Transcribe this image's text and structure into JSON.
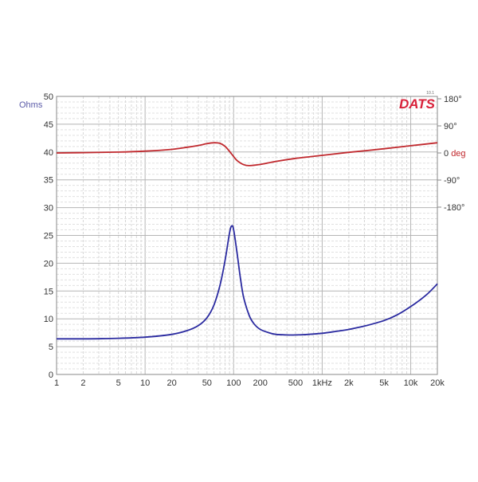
{
  "chart_data": {
    "type": "line",
    "title": "",
    "brand": "DATS",
    "brand_version": "10.1",
    "xlabel": "",
    "x_scale": "log",
    "xlim": [
      1,
      20000
    ],
    "x_ticks": [
      {
        "value": 1,
        "label": "1"
      },
      {
        "value": 2,
        "label": "2"
      },
      {
        "value": 5,
        "label": "5"
      },
      {
        "value": 10,
        "label": "10"
      },
      {
        "value": 20,
        "label": "20"
      },
      {
        "value": 50,
        "label": "50"
      },
      {
        "value": 100,
        "label": "100"
      },
      {
        "value": 200,
        "label": "200"
      },
      {
        "value": 500,
        "label": "500"
      },
      {
        "value": 1000,
        "label": "1kHz"
      },
      {
        "value": 2000,
        "label": "2k"
      },
      {
        "value": 5000,
        "label": "5k"
      },
      {
        "value": 10000,
        "label": "10k"
      },
      {
        "value": 20000,
        "label": "20k"
      }
    ],
    "ylabel_left": "Ohms",
    "ylim_left": [
      0,
      50
    ],
    "y_ticks_left": [
      "0",
      "5",
      "10",
      "15",
      "20",
      "25",
      "30",
      "35",
      "40",
      "45",
      "50"
    ],
    "ylabel_right": "deg",
    "ylim_right": [
      -180,
      180
    ],
    "y_ticks_right": [
      {
        "value": 180,
        "label": "180°"
      },
      {
        "value": 90,
        "label": "90°"
      },
      {
        "value": 0,
        "label": "0 deg"
      },
      {
        "value": -90,
        "label": "-90°"
      },
      {
        "value": -180,
        "label": "-180°"
      }
    ],
    "grid": true,
    "series": [
      {
        "name": "Impedance",
        "axis": "left",
        "color": "#2a2aa0",
        "x": [
          1,
          2,
          5,
          10,
          20,
          30,
          40,
          50,
          60,
          70,
          80,
          90,
          95,
          100,
          110,
          120,
          130,
          150,
          170,
          200,
          250,
          300,
          400,
          500,
          700,
          1000,
          1500,
          2000,
          3000,
          5000,
          7000,
          10000,
          15000,
          20000
        ],
        "values": [
          6.4,
          6.4,
          6.5,
          6.7,
          7.2,
          7.9,
          8.8,
          10.2,
          12.5,
          16.0,
          20.5,
          25.5,
          26.7,
          26.0,
          21.5,
          17.0,
          13.8,
          10.6,
          9.1,
          8.1,
          7.5,
          7.2,
          7.1,
          7.1,
          7.2,
          7.4,
          7.8,
          8.1,
          8.7,
          9.7,
          10.7,
          12.2,
          14.3,
          16.3
        ]
      },
      {
        "name": "Phase",
        "axis": "right",
        "color": "#c0282d",
        "x": [
          1,
          2,
          5,
          10,
          20,
          30,
          40,
          50,
          60,
          70,
          80,
          90,
          100,
          110,
          130,
          150,
          200,
          300,
          500,
          1000,
          2000,
          5000,
          10000,
          20000
        ],
        "values": [
          0,
          1,
          3,
          6,
          12,
          19,
          25,
          31,
          34,
          32,
          22,
          5,
          -12,
          -26,
          -39,
          -42,
          -38,
          -28,
          -18,
          -8,
          2,
          14,
          24,
          34
        ]
      }
    ]
  }
}
